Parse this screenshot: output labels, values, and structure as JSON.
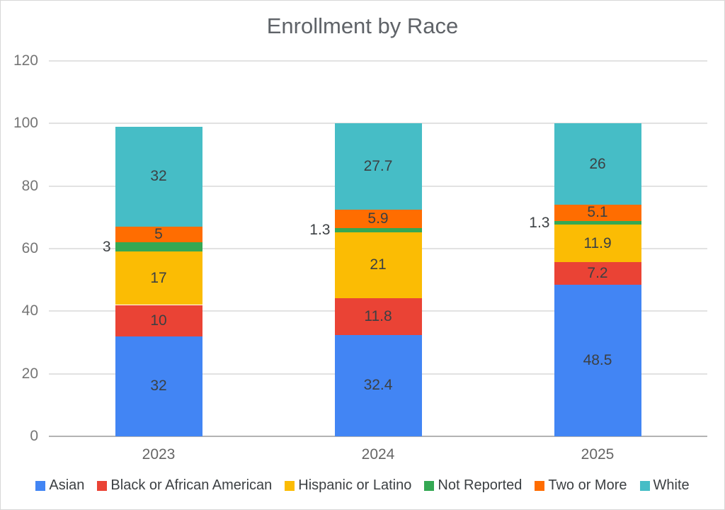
{
  "chart_data": {
    "type": "bar",
    "stacked": true,
    "title": "Enrollment by Race",
    "categories": [
      "2023",
      "2024",
      "2025"
    ],
    "series": [
      {
        "name": "Asian",
        "color": "#4285F4",
        "values": [
          32,
          32.4,
          48.5
        ],
        "label_placement": "inside"
      },
      {
        "name": "Black or African American",
        "color": "#EA4335",
        "values": [
          10,
          11.8,
          7.2
        ],
        "label_placement": "inside"
      },
      {
        "name": "Hispanic or Latino",
        "color": "#FBBC04",
        "values": [
          17,
          21,
          11.9
        ],
        "label_placement": "inside"
      },
      {
        "name": "Not Reported",
        "color": "#34A853",
        "values": [
          3,
          1.3,
          1.3
        ],
        "label_placement": "outside-left"
      },
      {
        "name": "Two or More",
        "color": "#FF6D01",
        "values": [
          5,
          5.9,
          5.1
        ],
        "label_placement": "inside"
      },
      {
        "name": "White",
        "color": "#46BDC6",
        "values": [
          32,
          27.7,
          26
        ],
        "label_placement": "inside"
      }
    ],
    "y_axis": {
      "min": 0,
      "max": 120,
      "step": 20,
      "ticks": [
        0,
        20,
        40,
        60,
        80,
        100,
        120
      ]
    },
    "x_axis": {
      "labels": [
        "2023",
        "2024",
        "2025"
      ]
    },
    "legend": {
      "position": "bottom",
      "entries": [
        "Asian",
        "Black or African American",
        "Hispanic or Latino",
        "Not Reported",
        "Two or More",
        "White"
      ]
    },
    "grid": true,
    "colors": {
      "grid_line": "#e2e2e2",
      "axis_line": "#b3b3b3",
      "axis_text": "#757575",
      "data_label_text": "#3c4043",
      "title_text": "#5f6368"
    }
  }
}
